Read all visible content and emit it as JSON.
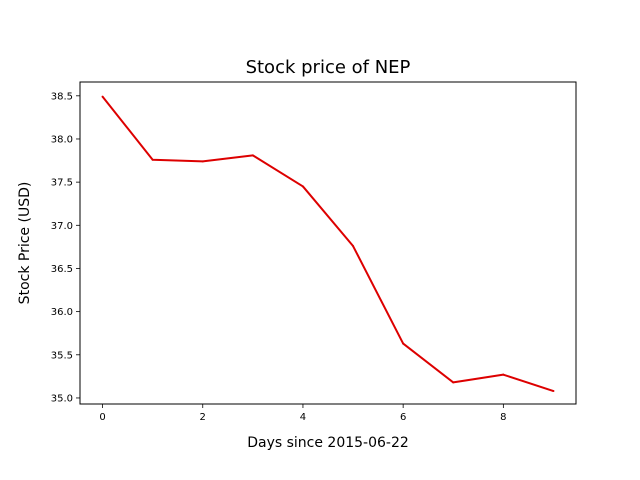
{
  "chart_data": {
    "type": "line",
    "title": "Stock price of NEP",
    "xlabel": "Days since 2015-06-22",
    "ylabel": "Stock Price (USD)",
    "x": [
      0,
      1,
      2,
      3,
      4,
      5,
      6,
      7,
      8,
      9
    ],
    "series": [
      {
        "values": [
          38.49,
          37.76,
          37.74,
          37.81,
          37.45,
          36.76,
          35.63,
          35.18,
          35.27,
          35.08
        ],
        "color": "#dd0000"
      }
    ],
    "xlim": [
      -0.45,
      9.45
    ],
    "ylim": [
      34.93,
      38.66
    ],
    "xticks": [
      0,
      2,
      4,
      6,
      8
    ],
    "yticks": [
      35.0,
      35.5,
      36.0,
      36.5,
      37.0,
      37.5,
      38.0,
      38.5
    ],
    "xtick_labels": [
      "0",
      "2",
      "4",
      "6",
      "8"
    ],
    "ytick_labels": [
      "35.0",
      "35.5",
      "36.0",
      "36.5",
      "37.0",
      "37.5",
      "38.0",
      "38.5"
    ],
    "grid": false,
    "legend": "none"
  }
}
